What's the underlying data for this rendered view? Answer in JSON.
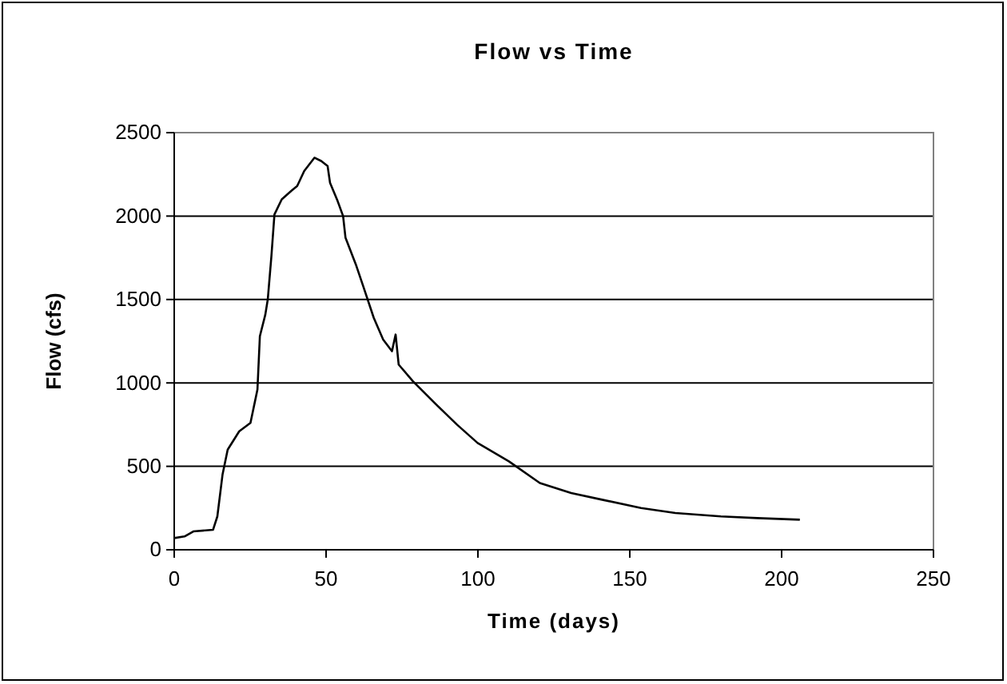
{
  "chart_data": {
    "type": "line",
    "title": "Flow vs Time",
    "xlabel": "Time (days)",
    "ylabel": "Flow (cfs)",
    "xlim": [
      0,
      250
    ],
    "xticks": [
      0,
      50,
      100,
      150,
      200,
      250
    ],
    "ylim": [
      0,
      2500
    ],
    "yticks": [
      0,
      500,
      1000,
      1500,
      2000,
      2500
    ],
    "grid": "y",
    "marker": "none",
    "line_style": "solid",
    "series": [
      {
        "color": "#000000",
        "x": [
          0,
          3.4,
          6.3,
          12.8,
          14.2,
          15.9,
          17.6,
          21.4,
          25.1,
          27.4,
          28.2,
          30,
          30.8,
          32,
          33,
          35.4,
          38.5,
          40.5,
          42.8,
          46.2,
          48.4,
          50.5,
          51.3,
          53.8,
          55.6,
          56.4,
          59.8,
          62.4,
          65.7,
          68.8,
          71.7,
          72.9,
          73.9,
          78.6,
          86.3,
          93.1,
          99.9,
          110.2,
          120.4,
          130.7,
          140.9,
          153.7,
          165,
          180,
          192,
          206
        ],
        "values": [
          70,
          80,
          110,
          120,
          200,
          450,
          600,
          710,
          760,
          960,
          1280,
          1410,
          1500,
          1760,
          2010,
          2100,
          2150,
          2180,
          2270,
          2350,
          2330,
          2300,
          2200,
          2090,
          2000,
          1870,
          1710,
          1570,
          1390,
          1260,
          1190,
          1290,
          1110,
          1010,
          870,
          750,
          640,
          530,
          400,
          340,
          300,
          250,
          220,
          200,
          190,
          180
        ]
      }
    ]
  }
}
